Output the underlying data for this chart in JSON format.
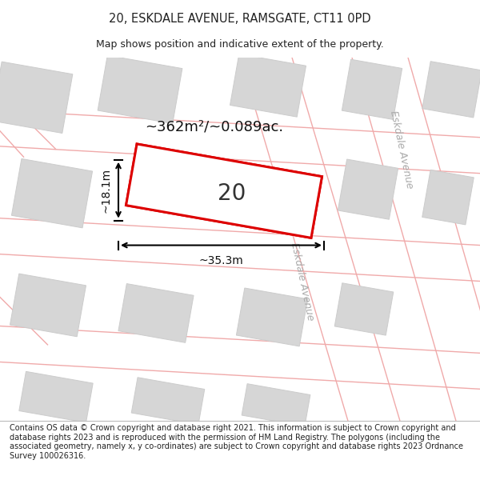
{
  "title": "20, ESKDALE AVENUE, RAMSGATE, CT11 0PD",
  "subtitle": "Map shows position and indicative extent of the property.",
  "footer": "Contains OS data © Crown copyright and database right 2021. This information is subject to Crown copyright and database rights 2023 and is reproduced with the permission of HM Land Registry. The polygons (including the associated geometry, namely x, y co-ordinates) are subject to Crown copyright and database rights 2023 Ordnance Survey 100026316.",
  "bg_color": "#ffffff",
  "map_bg": "#f7f7f7",
  "road_line_color": "#f0aaaa",
  "highlight_color": "#dd0000",
  "area_label": "~362m²/~0.089ac.",
  "number_label": "20",
  "width_label": "~35.3m",
  "height_label": "~18.1m",
  "street_label": "Eskdale Avenue"
}
